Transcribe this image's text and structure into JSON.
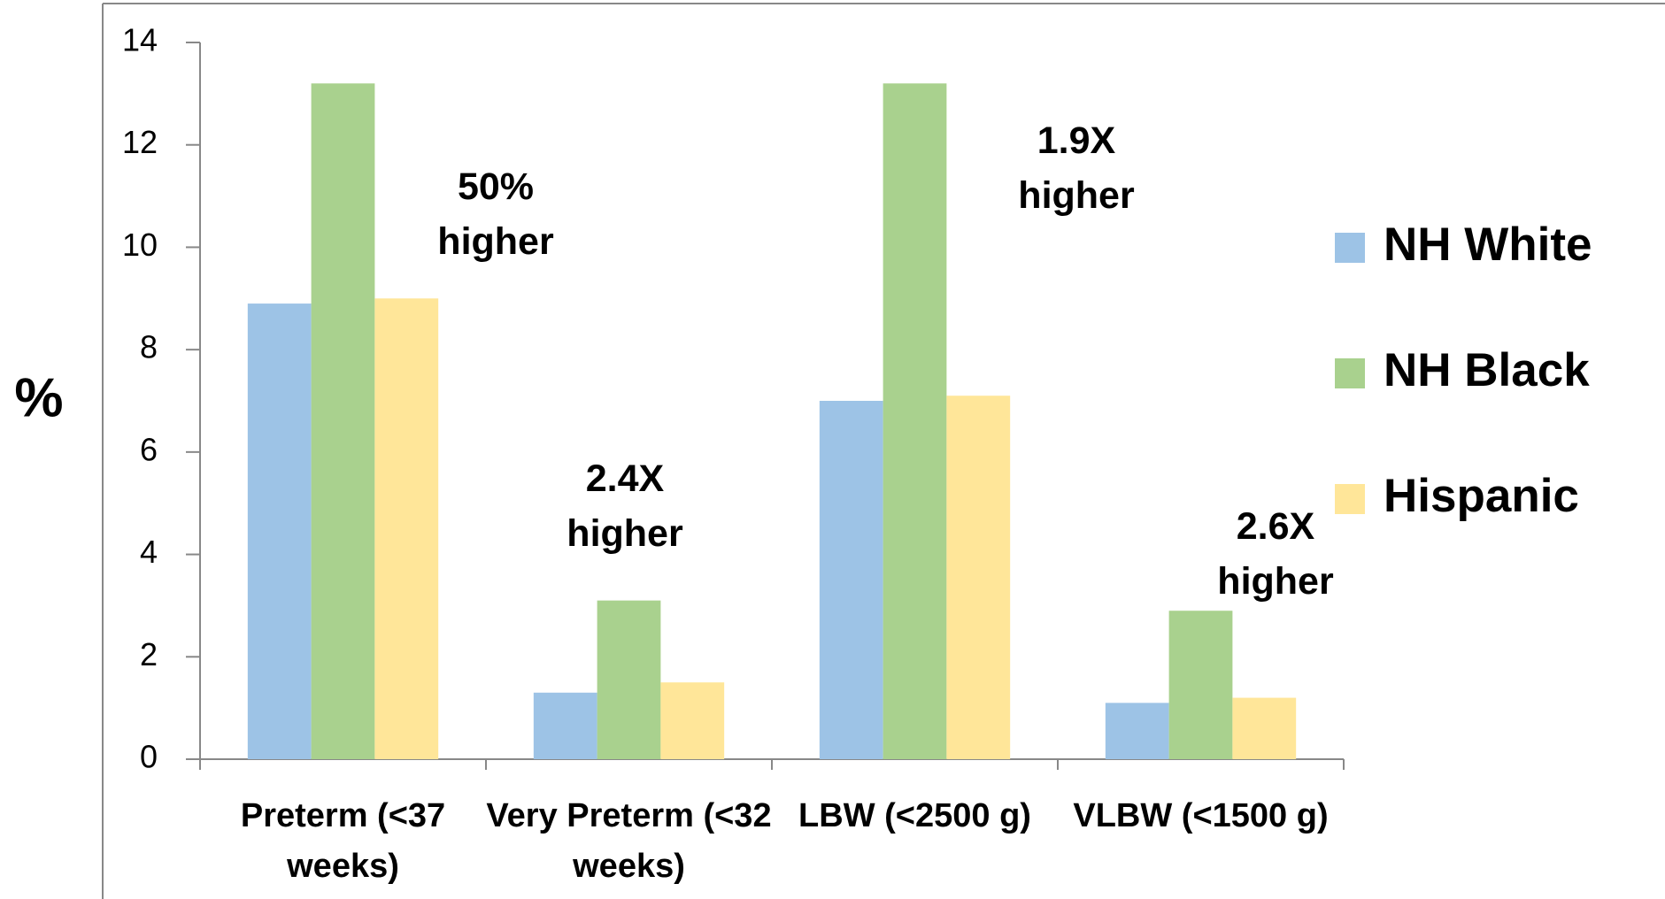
{
  "chart_data": {
    "type": "bar",
    "y_label": "%",
    "categories": [
      "Preterm (<37 weeks)",
      "Very Preterm (<32 weeks)",
      "LBW (<2500 g)",
      "VLBW (<1500 g)"
    ],
    "series": [
      {
        "name": "NH White",
        "color": "#9dc3e6",
        "values": [
          8.9,
          1.3,
          7.0,
          1.1
        ]
      },
      {
        "name": "NH Black",
        "color": "#a9d18e",
        "values": [
          13.2,
          3.1,
          13.2,
          2.9
        ]
      },
      {
        "name": "Hispanic",
        "color": "#ffe699",
        "values": [
          9.0,
          1.5,
          7.1,
          1.2
        ]
      }
    ],
    "annotations": [
      "50% higher",
      "2.4X higher",
      "1.9X higher",
      "2.6X higher"
    ],
    "ylim": [
      0,
      14
    ],
    "yticks": [
      0,
      2,
      4,
      6,
      8,
      10,
      12,
      14
    ],
    "grid": false,
    "legend": "right"
  }
}
